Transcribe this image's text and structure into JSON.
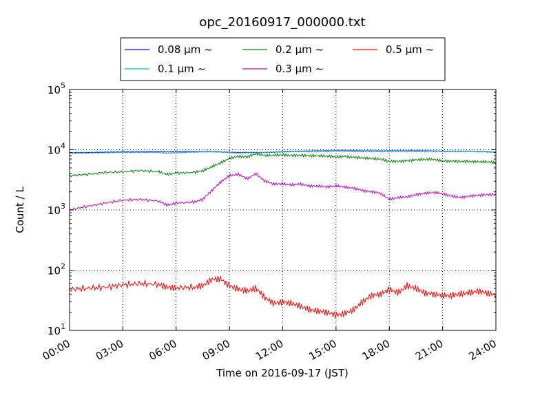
{
  "chart_data": {
    "type": "line",
    "title": "opc_20160917_000000.txt",
    "xlabel": "Time on 2016-09-17 (JST)",
    "ylabel": "Count / L",
    "yscale": "log",
    "ylim": [
      10,
      100000
    ],
    "xlim": [
      "00:00",
      "24:00"
    ],
    "grid": true,
    "legend_position": "top-center",
    "x_ticks": [
      "00:00",
      "03:00",
      "06:00",
      "09:00",
      "12:00",
      "15:00",
      "18:00",
      "21:00",
      "24:00"
    ],
    "y_ticks": [
      {
        "value": 10,
        "base": "10",
        "exp": "1"
      },
      {
        "value": 100,
        "base": "10",
        "exp": "2"
      },
      {
        "value": 1000,
        "base": "10",
        "exp": "3"
      },
      {
        "value": 10000,
        "base": "10",
        "exp": "4"
      },
      {
        "value": 100000,
        "base": "10",
        "exp": "5"
      }
    ],
    "x_hours": [
      0,
      1,
      2,
      3,
      4,
      5,
      5.5,
      6,
      7,
      7.5,
      8,
      8.5,
      9,
      9.5,
      10,
      10.5,
      11,
      11.5,
      12,
      12.5,
      13,
      13.5,
      14,
      14.5,
      15,
      15.5,
      16,
      16.5,
      17,
      17.5,
      18,
      18.5,
      19,
      19.5,
      20,
      20.5,
      21,
      21.5,
      22,
      22.5,
      23,
      23.5,
      24
    ],
    "series": [
      {
        "name": "0.08 μm ~",
        "color": "#0000ff",
        "values": [
          8900,
          9000,
          9100,
          9200,
          9200,
          9300,
          9200,
          9200,
          9300,
          9300,
          9300,
          9200,
          9100,
          9000,
          9000,
          9000,
          9000,
          9100,
          9200,
          9300,
          9400,
          9400,
          9500,
          9500,
          9600,
          9600,
          9500,
          9500,
          9500,
          9400,
          9500,
          9500,
          9500,
          9500,
          9500,
          9500,
          9400,
          9400,
          9400,
          9400,
          9300,
          9200,
          9100
        ]
      },
      {
        "name": "0.1 μm ~",
        "color": "#00bfbf",
        "values": [
          8700,
          8800,
          8900,
          9000,
          9000,
          9000,
          8700,
          8900,
          9100,
          9200,
          9200,
          9100,
          9000,
          8800,
          8900,
          8900,
          9000,
          9200,
          9300,
          9400,
          9500,
          9600,
          9700,
          9700,
          9800,
          9800,
          9800,
          9700,
          9700,
          9600,
          9700,
          9700,
          9700,
          9800,
          9700,
          9600,
          9500,
          9500,
          9500,
          9400,
          9300,
          9300,
          9100
        ]
      },
      {
        "name": "0.2 μm ~",
        "color": "#008000",
        "values": [
          3700,
          3900,
          4200,
          4300,
          4500,
          4300,
          3900,
          4100,
          4200,
          4500,
          5200,
          6000,
          7200,
          7800,
          7600,
          8600,
          8000,
          8100,
          8200,
          8000,
          8100,
          8000,
          7900,
          7800,
          7600,
          7800,
          7500,
          7300,
          7100,
          7000,
          6400,
          6400,
          6600,
          6800,
          6900,
          6900,
          6500,
          6500,
          6400,
          6400,
          6300,
          6300,
          6100
        ]
      },
      {
        "name": "0.3 μm ~",
        "color": "#bf00bf",
        "values": [
          1000,
          1150,
          1300,
          1450,
          1500,
          1400,
          1200,
          1300,
          1350,
          1500,
          2100,
          2900,
          3700,
          3900,
          3300,
          4000,
          3000,
          2700,
          2700,
          2600,
          2700,
          2500,
          2500,
          2400,
          2500,
          2400,
          2300,
          2100,
          2000,
          1900,
          1500,
          1600,
          1650,
          1800,
          1900,
          1950,
          1850,
          1700,
          1600,
          1700,
          1750,
          1800,
          1800
        ]
      },
      {
        "name": "0.5 μm ~",
        "color": "#ff0000",
        "values": [
          48,
          50,
          52,
          57,
          60,
          58,
          52,
          51,
          52,
          55,
          70,
          72,
          55,
          48,
          45,
          50,
          35,
          28,
          30,
          28,
          25,
          22,
          21,
          20,
          18,
          19,
          22,
          30,
          38,
          40,
          48,
          42,
          55,
          50,
          42,
          40,
          38,
          38,
          40,
          42,
          45,
          42,
          38
        ]
      }
    ]
  }
}
